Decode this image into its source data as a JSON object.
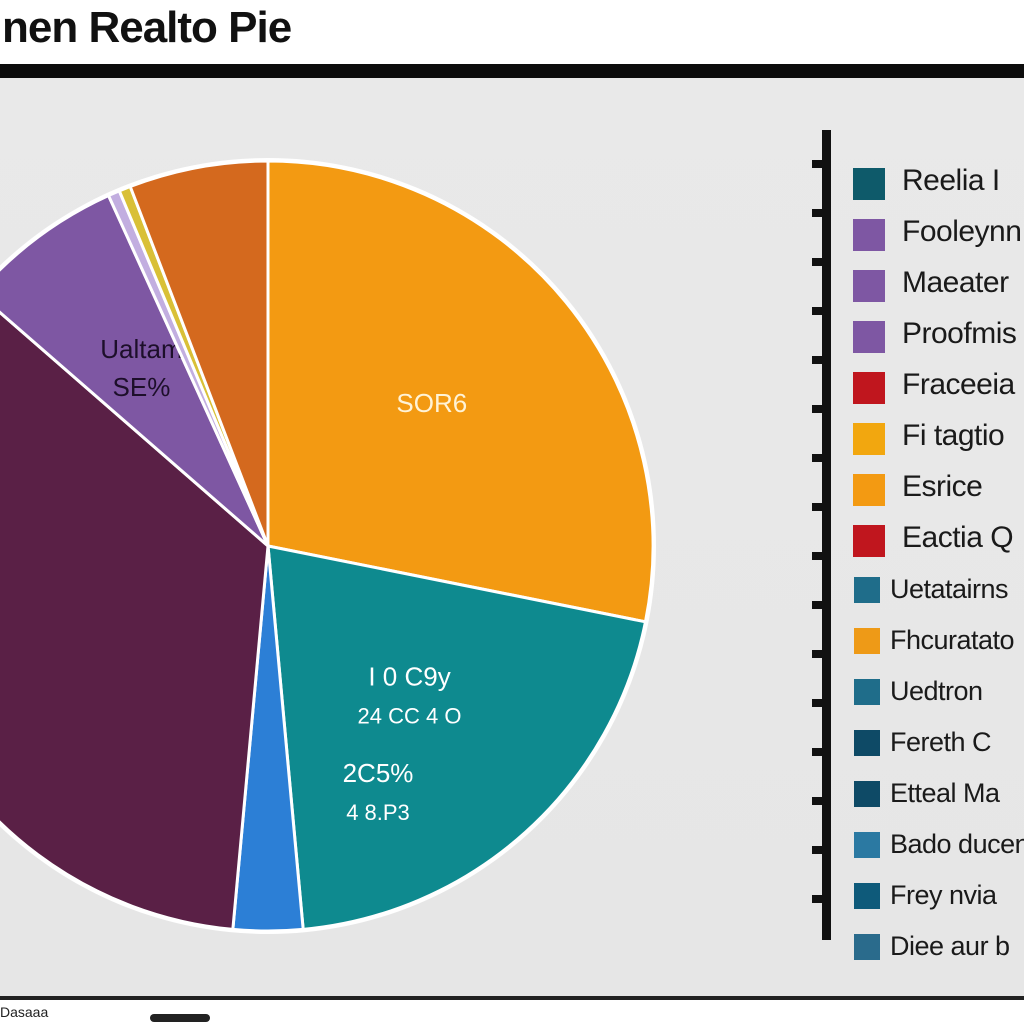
{
  "title": "nen Realto Pie",
  "footer": "Dasaaa",
  "chart_data": {
    "type": "pie",
    "title": "nen Realto Pie",
    "slices": [
      {
        "name": "",
        "value": 29,
        "color": "#f39a12",
        "label": "",
        "percent": "SOR6"
      },
      {
        "name": "",
        "value": 21,
        "color": "#0e8a8f",
        "label": "I 0 C9y",
        "sublabel": "24 CC 4 O"
      },
      {
        "name": "",
        "value": 3,
        "color": "#2c7fd6",
        "label": "2C5%",
        "sublabel": "4 8.P3"
      },
      {
        "name": "",
        "value": 36,
        "color": "#5a2046",
        "label": "",
        "percent": ""
      },
      {
        "name": "",
        "value": 7,
        "color": "#7e57a3",
        "label": "Ualtam",
        "percent": "SE%"
      },
      {
        "name": "",
        "value": 0.5,
        "color": "#c2aee0",
        "label": ""
      },
      {
        "name": "",
        "value": 0.5,
        "color": "#d9c037",
        "label": ""
      },
      {
        "name": "",
        "value": 6,
        "color": "#d4691e",
        "label": ""
      }
    ],
    "legend": [
      {
        "label": "Reelia I",
        "color": "#0e5a6a"
      },
      {
        "label": "Fooleynn",
        "color": "#7e57a3"
      },
      {
        "label": "Maeater",
        "color": "#7e57a3"
      },
      {
        "label": "Proofmis",
        "color": "#7e57a3"
      },
      {
        "label": "Fraceeia",
        "color": "#c0161e"
      },
      {
        "label": "Fi tagtio",
        "color": "#f2a70f"
      },
      {
        "label": "Esrice",
        "color": "#f39a12"
      },
      {
        "label": "Eactia Q",
        "color": "#c0161e"
      },
      {
        "label": "Uetatairns",
        "color": "#1f6d8a"
      },
      {
        "label": "Fhcuratato",
        "color": "#ee9a17"
      },
      {
        "label": "Uedtron",
        "color": "#1f6d8a"
      },
      {
        "label": "Fereth C",
        "color": "#0e4a66"
      },
      {
        "label": "Etteal Ma",
        "color": "#0e4a66"
      },
      {
        "label": "Bado ducen",
        "color": "#2b79a2"
      },
      {
        "label": "Frey nvia",
        "color": "#0e5a7a"
      },
      {
        "label": "Diee aur b",
        "color": "#2a6b8c"
      }
    ],
    "legend_placement": "right"
  }
}
